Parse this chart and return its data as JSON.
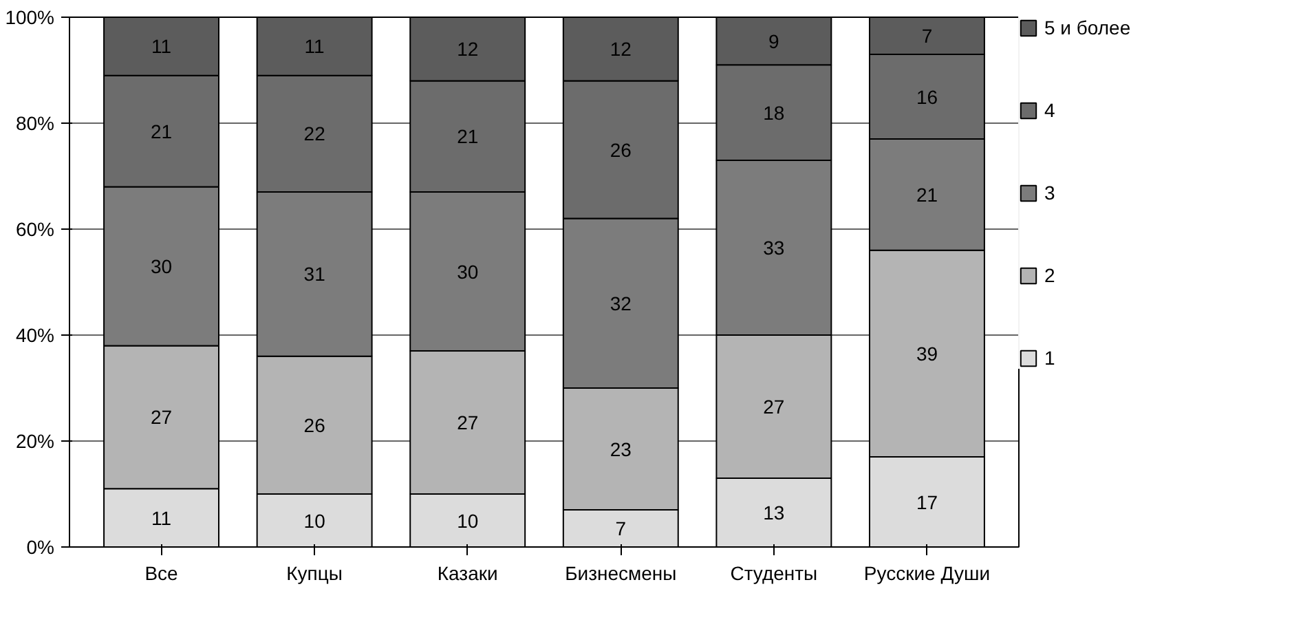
{
  "chart_data": {
    "type": "bar",
    "stacked": true,
    "categories": [
      "Все",
      "Купцы",
      "Казаки",
      "Бизнесмены",
      "Студенты",
      "Русские Души"
    ],
    "series": [
      {
        "name": "1",
        "color": "#dcdcdc",
        "values": [
          11,
          10,
          10,
          7,
          13,
          17
        ]
      },
      {
        "name": "2",
        "color": "#b4b4b4",
        "values": [
          27,
          26,
          27,
          23,
          27,
          39
        ]
      },
      {
        "name": "3",
        "color": "#7c7c7c",
        "values": [
          30,
          31,
          30,
          32,
          33,
          21
        ]
      },
      {
        "name": "4",
        "color": "#6c6c6c",
        "values": [
          21,
          22,
          21,
          26,
          18,
          16
        ]
      },
      {
        "name": "5 и более",
        "color": "#5c5c5c",
        "values": [
          11,
          11,
          12,
          12,
          9,
          7
        ]
      }
    ],
    "ylim": [
      0,
      100
    ],
    "yticks": [
      {
        "value": 0,
        "label": "0%"
      },
      {
        "value": 20,
        "label": "20%"
      },
      {
        "value": 40,
        "label": "40%"
      },
      {
        "value": 60,
        "label": "60%"
      },
      {
        "value": 80,
        "label": "80%"
      },
      {
        "value": 100,
        "label": "100%"
      }
    ],
    "grid": "y",
    "legend": "right",
    "data_labels": true
  }
}
